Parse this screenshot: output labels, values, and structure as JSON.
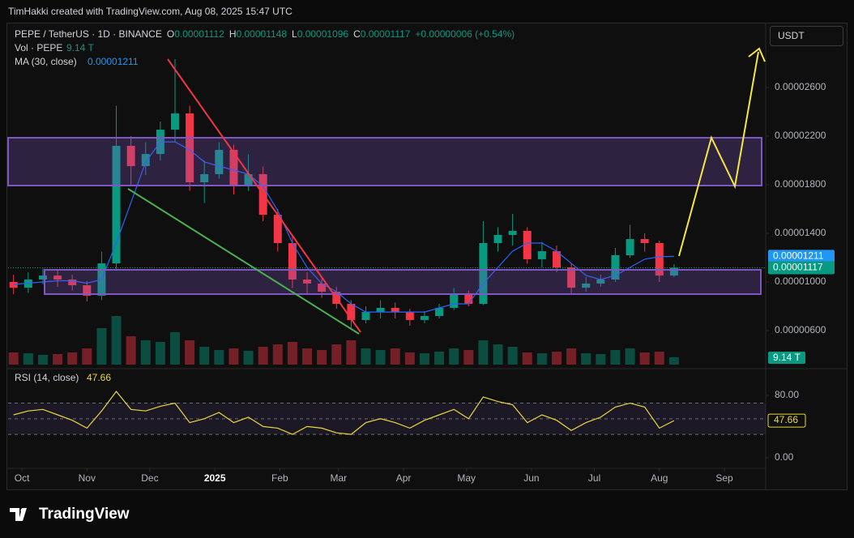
{
  "watermark": "TimHakki created with TradingView.com, Aug 08, 2025 15:47 UTC",
  "currency_button": "USDT",
  "brand": "TradingView",
  "chart_data": [
    {
      "type": "candlestick",
      "title": "PEPE / TetherUS · 1D · BINANCE",
      "ohlc_legend": [
        [
          "O",
          "0.00001112"
        ],
        [
          "H",
          "0.00001148"
        ],
        [
          "L",
          "0.00001096"
        ],
        [
          "C",
          "0.00001117"
        ]
      ],
      "change": "+0.00000006 (+0.54%)",
      "x": [
        -4,
        3,
        10,
        17,
        24,
        31,
        38,
        45,
        52,
        59,
        66,
        73,
        80,
        87,
        94,
        101,
        108,
        115,
        122,
        129,
        136,
        143,
        150,
        157,
        164,
        171,
        178,
        185,
        192,
        199,
        206,
        213,
        220,
        227,
        234,
        241,
        248,
        255,
        262,
        269,
        276,
        283,
        290,
        297,
        304,
        311
      ],
      "open": [
        1e-05,
        9.53e-06,
        1.02e-05,
        1.053e-05,
        1.02e-05,
        9.73e-06,
        8.87e-06,
        1.153e-05,
        2.12e-05,
        1.953e-05,
        2.053e-05,
        2.253e-05,
        2.387e-05,
        1.82e-05,
        1.887e-05,
        2.087e-05,
        1.787e-05,
        1.887e-05,
        1.553e-05,
        1.32e-05,
        1.02e-05,
        9.87e-06,
        9.2e-06,
        8.2e-06,
        6.87e-06,
        7.53e-06,
        7.87e-06,
        7.53e-06,
        6.87e-06,
        7.2e-06,
        7.87e-06,
        9.07e-06,
        8.2e-06,
        1.32e-05,
        1.387e-05,
        1.42e-05,
        1.187e-05,
        1.253e-05,
        1.12e-05,
        9.53e-06,
        9.87e-06,
        1.02e-05,
        1.22e-05,
        1.353e-05,
        1.32e-05,
        1.053e-05
      ],
      "high": [
        1.06e-05,
        1.08e-05,
        1.11e-05,
        1.1e-05,
        1.06e-05,
        1.01e-05,
        1.25e-05,
        2.45e-05,
        2.2e-05,
        2.15e-05,
        2.32e-05,
        2.833e-05,
        2.45e-05,
        2e-05,
        2.15e-05,
        2.13e-05,
        2.05e-05,
        1.95e-05,
        1.6e-05,
        1.38e-05,
        1.08e-05,
        1.03e-05,
        9.6e-06,
        8.5e-06,
        8e-06,
        8.5e-06,
        8.3e-06,
        7.8e-06,
        7.6e-06,
        8.2e-06,
        9.5e-06,
        9.3e-06,
        1.5e-05,
        1.45e-05,
        1.56e-05,
        1.45e-05,
        1.33e-05,
        1.3e-05,
        1.15e-05,
        1.04e-05,
        1.06e-05,
        1.28e-05,
        1.47e-05,
        1.4e-05,
        1.34e-05,
        1.148e-05
      ],
      "low": [
        9e-06,
        9.1e-06,
        9.8e-06,
        9.6e-06,
        9.3e-06,
        8.4e-06,
        8.5e-06,
        1.1e-05,
        1.8e-05,
        1.88e-05,
        2e-05,
        2.15e-05,
        1.75e-05,
        1.65e-05,
        1.85e-05,
        1.72e-05,
        1.75e-05,
        1.5e-05,
        1.25e-05,
        9.5e-06,
        9e-06,
        8.7e-06,
        7.8e-06,
        6.2e-06,
        6.6e-06,
        7e-06,
        7e-06,
        6.4e-06,
        6.6e-06,
        7e-06,
        7.7e-06,
        8e-06,
        8.1e-06,
        1.25e-05,
        1.3e-05,
        1.15e-05,
        1.12e-05,
        1.08e-05,
        9e-06,
        9.2e-06,
        9.6e-06,
        1e-05,
        1.2e-05,
        1.25e-05,
        1e-05,
        1.04e-05
      ],
      "close": [
        9.53e-06,
        1.02e-05,
        1.053e-05,
        1.02e-05,
        9.73e-06,
        8.87e-06,
        1.153e-05,
        2.12e-05,
        1.953e-05,
        2.053e-05,
        2.253e-05,
        2.387e-05,
        1.82e-05,
        1.887e-05,
        2.087e-05,
        1.787e-05,
        1.887e-05,
        1.553e-05,
        1.32e-05,
        1.02e-05,
        9.87e-06,
        9.2e-06,
        8.2e-06,
        6.87e-06,
        7.53e-06,
        7.87e-06,
        7.53e-06,
        6.87e-06,
        7.2e-06,
        7.87e-06,
        9.07e-06,
        8.2e-06,
        1.32e-05,
        1.387e-05,
        1.42e-05,
        1.187e-05,
        1.253e-05,
        1.12e-05,
        9.53e-06,
        9.87e-06,
        1.02e-05,
        1.22e-05,
        1.353e-05,
        1.32e-05,
        1.053e-05,
        1.117e-05
      ],
      "colors": {
        "up": "#089981",
        "down": "#f23645"
      },
      "series": [
        {
          "name": "MA (30, close)",
          "color": "#2962ff",
          "values": [
            9.8e-06,
            9.9e-06,
            1e-05,
            1.01e-05,
            1.01e-05,
            9.9e-06,
            1.02e-05,
            1.32e-05,
            1.653e-05,
            1.987e-05,
            2.153e-05,
            2.153e-05,
            2.087e-05,
            1.987e-05,
            1.953e-05,
            1.92e-05,
            1.887e-05,
            1.787e-05,
            1.587e-05,
            1.32e-05,
            1.12e-05,
            9.87e-06,
            9.2e-06,
            8.2e-06,
            7.53e-06,
            7.53e-06,
            7.53e-06,
            7.53e-06,
            7.53e-06,
            7.87e-06,
            8.2e-06,
            8.2e-06,
            9.87e-06,
            1.12e-05,
            1.253e-05,
            1.32e-05,
            1.32e-05,
            1.253e-05,
            1.153e-05,
            1.053e-05,
            1.02e-05,
            1.053e-05,
            1.12e-05,
            1.187e-05,
            1.207e-05,
            1.211e-05
          ]
        }
      ],
      "volume": {
        "name": "Vol · PEPE",
        "last_label": "9.14 T",
        "ylim": [
          0,
          60
        ],
        "values": [
          15,
          14,
          12,
          13,
          15,
          20,
          45,
          60,
          35,
          30,
          28,
          40,
          30,
          22,
          18,
          20,
          17,
          22,
          25,
          28,
          20,
          18,
          25,
          30,
          20,
          18,
          20,
          15,
          14,
          16,
          20,
          18,
          30,
          25,
          22,
          15,
          14,
          16,
          20,
          14,
          13,
          18,
          20,
          15,
          16,
          9.14
        ]
      },
      "xlim": [
        -6.6,
        354.7
      ],
      "ylim": [
        3.2e-06,
        3.12e-05
      ],
      "yticks": [
        {
          "value": 2.6e-05,
          "label": "0.00002600"
        },
        {
          "value": 2.2e-05,
          "label": "0.00002200"
        },
        {
          "value": 1.8e-05,
          "label": "0.00001800"
        },
        {
          "value": 1.4e-05,
          "label": "0.00001400"
        },
        {
          "value": 1e-05,
          "label": "0.00001000"
        },
        {
          "value": 6e-06,
          "label": "0.00000600"
        }
      ],
      "grid": false
    },
    {
      "type": "line",
      "title": "RSI (14, close)",
      "x": [
        -4,
        3,
        10,
        17,
        24,
        31,
        38,
        45,
        52,
        59,
        66,
        73,
        80,
        87,
        94,
        101,
        108,
        115,
        122,
        129,
        136,
        143,
        150,
        157,
        164,
        171,
        178,
        185,
        192,
        199,
        206,
        213,
        220,
        227,
        234,
        241,
        248,
        255,
        262,
        269,
        276,
        283,
        290,
        297,
        304,
        311
      ],
      "series": [
        {
          "name": "RSI",
          "color": "#e8d83a",
          "values": [
            55,
            60,
            62,
            55,
            48,
            38,
            60,
            85,
            62,
            60,
            66,
            70,
            45,
            50,
            58,
            45,
            52,
            40,
            38,
            30,
            40,
            38,
            32,
            30,
            45,
            50,
            45,
            38,
            48,
            55,
            62,
            50,
            78,
            72,
            68,
            45,
            55,
            48,
            35,
            45,
            52,
            65,
            70,
            65,
            38,
            47.66
          ]
        }
      ],
      "bands": [
        70,
        50,
        30
      ],
      "xlim": [
        -6.6,
        354.7
      ],
      "ylim": [
        -20.8,
        109
      ],
      "yticks": [
        {
          "value": 80,
          "label": "80.00"
        },
        {
          "value": 0,
          "label": "0.00"
        }
      ],
      "xticks": [
        {
          "value": 0,
          "label": "Oct"
        },
        {
          "value": 31,
          "label": "Nov"
        },
        {
          "value": 61,
          "label": "Dec"
        },
        {
          "value": 92,
          "label": "2025"
        },
        {
          "value": 123,
          "label": "Feb"
        },
        {
          "value": 151,
          "label": "Mar"
        },
        {
          "value": 182,
          "label": "Apr"
        },
        {
          "value": 212,
          "label": "May"
        },
        {
          "value": 243,
          "label": "Jun"
        },
        {
          "value": 273,
          "label": "Jul"
        },
        {
          "value": 304,
          "label": "Aug"
        },
        {
          "value": 335,
          "label": "Sep"
        }
      ]
    }
  ]
}
